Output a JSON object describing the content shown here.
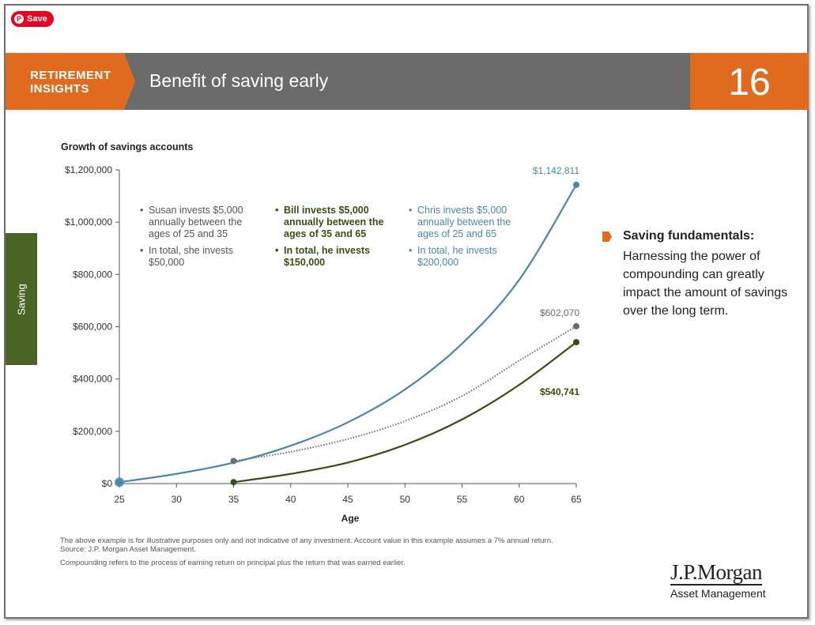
{
  "pin_button": {
    "label": "Save",
    "icon": "pinterest-icon",
    "color": "#e60023"
  },
  "header": {
    "section_line1": "RETIREMENT",
    "section_line2": "INSIGHTS",
    "title": "Benefit of saving early",
    "page_number": "16",
    "colors": {
      "orange": "#e06b1f",
      "grey": "#6b6b6b"
    }
  },
  "side_tab": {
    "label": "Saving",
    "color": "#4a6423"
  },
  "chart_data": {
    "type": "line",
    "title": "Growth of savings accounts",
    "xlabel": "Age",
    "ylabel": "",
    "xlim": [
      25,
      65
    ],
    "ylim": [
      0,
      1200000
    ],
    "x_ticks": [
      25,
      30,
      35,
      40,
      45,
      50,
      55,
      60,
      65
    ],
    "y_ticks": [
      0,
      200000,
      400000,
      600000,
      800000,
      1000000,
      1200000
    ],
    "y_tick_labels": [
      "$0",
      "$200,000",
      "$400,000",
      "$600,000",
      "$800,000",
      "$1,000,000",
      "$1,200,000"
    ],
    "series": [
      {
        "name": "Chris",
        "color": "#4a86a8",
        "style": "solid",
        "x": [
          25,
          30,
          35,
          40,
          45,
          50,
          55,
          60,
          65
        ],
        "y": [
          5350,
          36970,
          80300,
          144800,
          234100,
          359900,
          535300,
          779000,
          1142811
        ],
        "end_label": "$1,142,811"
      },
      {
        "name": "Susan",
        "color": "#6d6d6d",
        "style": "dotted",
        "x": [
          35,
          40,
          45,
          50,
          55,
          60,
          65
        ],
        "y": [
          86620,
          121500,
          170400,
          238900,
          335100,
          470000,
          602070
        ],
        "end_label": "$602,070"
      },
      {
        "name": "Bill",
        "color": "#3b4d14",
        "style": "solid",
        "x": [
          35,
          40,
          45,
          50,
          55,
          60,
          65
        ],
        "y": [
          5350,
          36970,
          80300,
          148200,
          245300,
          377400,
          540741
        ],
        "end_label": "$540,741"
      }
    ],
    "annotations": {
      "susan": [
        "Susan invests $5,000 annually between the ages of 25 and 35",
        "In total, she invests $50,000"
      ],
      "bill": [
        "Bill invests $5,000 annually between the ages of 35 and 65",
        "In total, he invests $150,000"
      ],
      "chris": [
        "Chris invests $5,000 annually between the ages of 25 and 65",
        "In total, he invests $200,000"
      ]
    }
  },
  "fundamentals": {
    "heading": "Saving fundamentals:",
    "body": "Harnessing the power of compounding can greatly impact the amount of savings over the long term."
  },
  "footnotes": {
    "line1": "The above example is for illustrative purposes only and not indicative of any investment. Account value in this example assumes a 7% annual return.",
    "line2": "Source: J.P. Morgan Asset Management.",
    "line3": "Compounding refers to the process of earning return on principal plus the return that was earned earlier."
  },
  "logo": {
    "name": "J.P.Morgan",
    "sub": "Asset Management"
  }
}
